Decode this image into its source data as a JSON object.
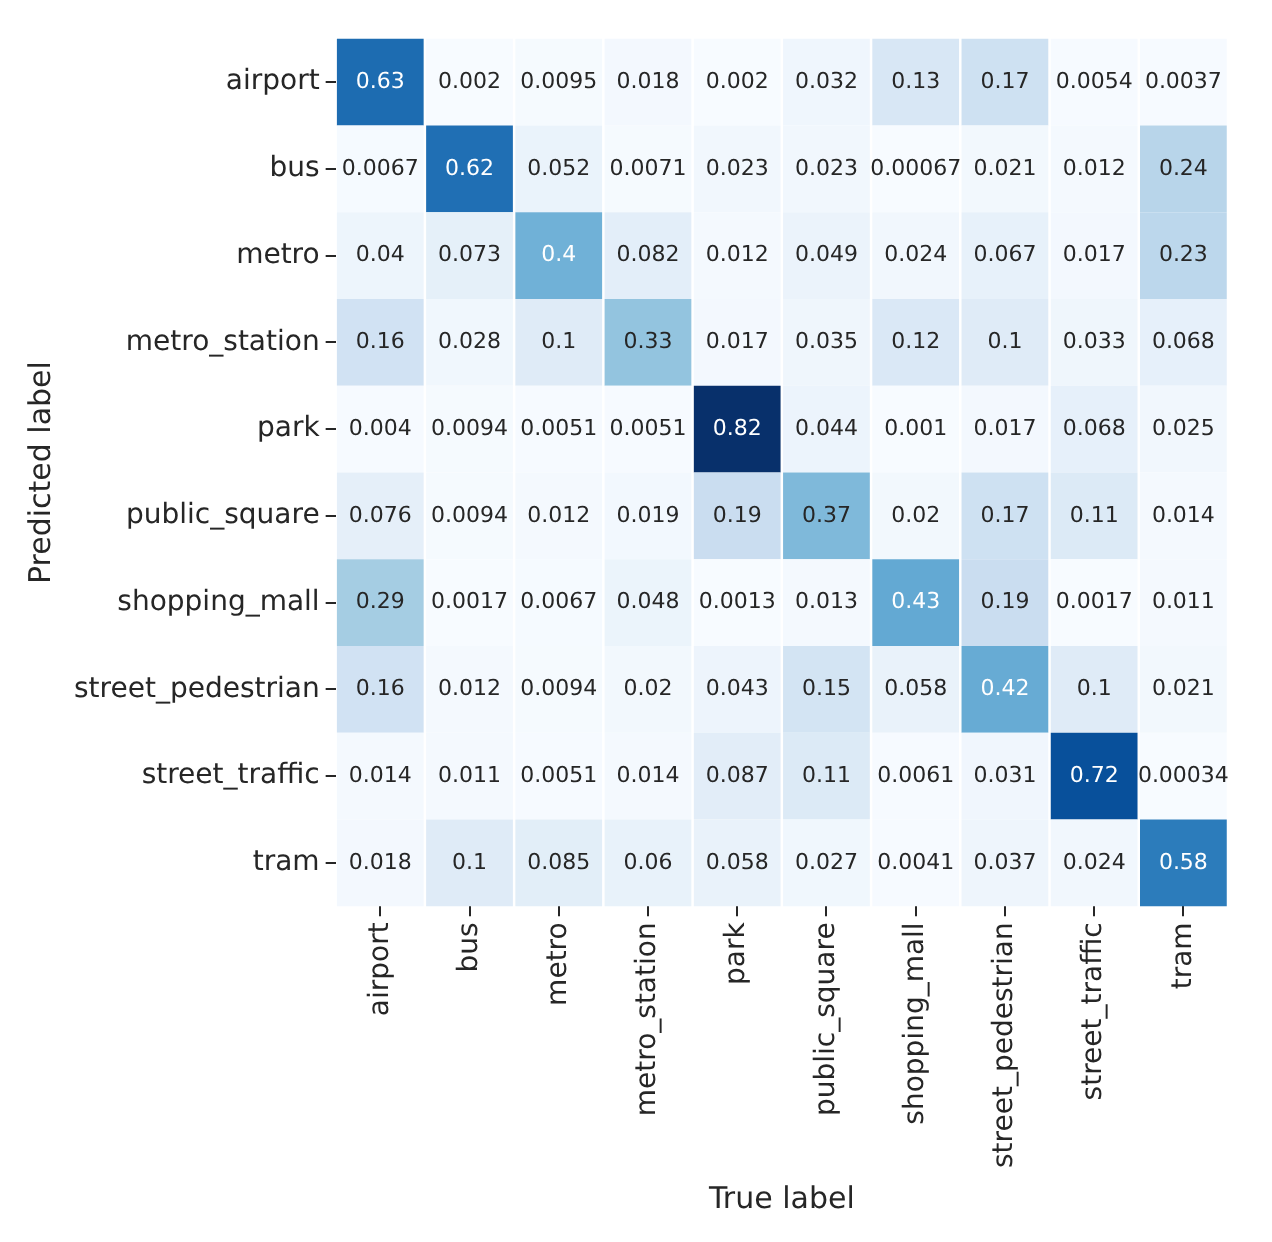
{
  "chart_data": {
    "type": "heatmap",
    "xlabel": "True label",
    "ylabel": "Predicted label",
    "categories": [
      "airport",
      "bus",
      "metro",
      "metro_station",
      "park",
      "public_square",
      "shopping_mall",
      "street_pedestrian",
      "street_traffic",
      "tram"
    ],
    "y_categories": [
      "airport",
      "bus",
      "metro",
      "metro_station",
      "park",
      "public_square",
      "shopping_mall",
      "street_pedestrian",
      "street_traffic",
      "tram"
    ],
    "cells": [
      [
        0.63,
        0.002,
        0.0095,
        0.018,
        0.002,
        0.032,
        0.13,
        0.17,
        0.0054,
        0.0037
      ],
      [
        0.0067,
        0.62,
        0.052,
        0.0071,
        0.023,
        0.023,
        0.00067,
        0.021,
        0.012,
        0.24
      ],
      [
        0.04,
        0.073,
        0.4,
        0.082,
        0.012,
        0.049,
        0.024,
        0.067,
        0.017,
        0.23
      ],
      [
        0.16,
        0.028,
        0.1,
        0.33,
        0.017,
        0.035,
        0.12,
        0.1,
        0.033,
        0.068
      ],
      [
        0.004,
        0.0094,
        0.0051,
        0.0051,
        0.82,
        0.044,
        0.001,
        0.017,
        0.068,
        0.025
      ],
      [
        0.076,
        0.0094,
        0.012,
        0.019,
        0.19,
        0.37,
        0.02,
        0.17,
        0.11,
        0.014
      ],
      [
        0.29,
        0.0017,
        0.0067,
        0.048,
        0.0013,
        0.013,
        0.43,
        0.19,
        0.0017,
        0.011
      ],
      [
        0.16,
        0.012,
        0.0094,
        0.02,
        0.043,
        0.15,
        0.058,
        0.42,
        0.1,
        0.021
      ],
      [
        0.014,
        0.011,
        0.0051,
        0.014,
        0.087,
        0.11,
        0.0061,
        0.031,
        0.72,
        0.00034
      ],
      [
        0.018,
        0.1,
        0.085,
        0.06,
        0.058,
        0.027,
        0.0041,
        0.037,
        0.024,
        0.58
      ]
    ],
    "data_labels": true
  }
}
